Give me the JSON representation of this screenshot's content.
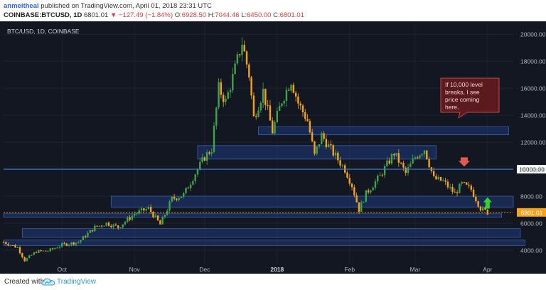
{
  "header": {
    "author": "anmeitheal",
    "published": "published on TradingView.com, April 01, 2018 23:31 UTC",
    "symbol": "COINBASE:BTCUSD, 1D",
    "last": "6801.01",
    "change_arrow": "▼",
    "change": "−127.49 (−1.84%)",
    "o_label": "O:",
    "o_value": "6928.50",
    "h_label": "H:",
    "h_value": "7044.46",
    "l_label": "L:",
    "l_value": "6450.00",
    "c_label": "C:",
    "c_value": "6801.01"
  },
  "footer": {
    "created_with": "Created with",
    "brand": "TradingView"
  },
  "colors": {
    "background": "#131722",
    "up": "#3fa34d",
    "down": "#f7a21b",
    "zone_fill": "#1e3a78",
    "zone_stroke": "#3b5fa8",
    "level_line": "#3d7de0",
    "price_line": "#f7a21b",
    "callout_fill": "#5a1a1e",
    "callout_stroke": "#c8444a",
    "down_marker": "#e05a4f",
    "up_marker": "#34d12f"
  },
  "chart_data": {
    "type": "candlestick",
    "chart_label": "BTC/USD, 1D, COINBASE",
    "x_start": "2017-09-06",
    "x_end": "2018-04-12",
    "ylim": [
      3000,
      20800
    ],
    "y_ticks": [
      "4000.00",
      "6000.00",
      "8000.00",
      "10000.00",
      "12000.00",
      "14000.00",
      "16000.00",
      "18000.00",
      "20000.00"
    ],
    "y_tick_values": [
      4000,
      6000,
      8000,
      10000,
      12000,
      14000,
      16000,
      18000,
      20000
    ],
    "x_ticks": [
      {
        "label": "Oct",
        "date": "2017-10-01",
        "bold": false
      },
      {
        "label": "Nov",
        "date": "2017-11-01",
        "bold": false
      },
      {
        "label": "Dec",
        "date": "2017-12-01",
        "bold": false
      },
      {
        "label": "2018",
        "date": "2018-01-01",
        "bold": true
      },
      {
        "label": "Feb",
        "date": "2018-02-01",
        "bold": false
      },
      {
        "label": "Mar",
        "date": "2018-03-01",
        "bold": false
      },
      {
        "label": "Apr",
        "date": "2018-04-01",
        "bold": false
      }
    ],
    "closes": [
      {
        "date": "2017-09-06",
        "close": 4600
      },
      {
        "date": "2017-09-12",
        "close": 4200
      },
      {
        "date": "2017-09-15",
        "close": 3250
      },
      {
        "date": "2017-09-20",
        "close": 3900
      },
      {
        "date": "2017-09-25",
        "close": 3950
      },
      {
        "date": "2017-10-01",
        "close": 4400
      },
      {
        "date": "2017-10-08",
        "close": 4600
      },
      {
        "date": "2017-10-15",
        "close": 5700
      },
      {
        "date": "2017-10-20",
        "close": 6000
      },
      {
        "date": "2017-10-25",
        "close": 5700
      },
      {
        "date": "2017-11-01",
        "close": 6700
      },
      {
        "date": "2017-11-07",
        "close": 7100
      },
      {
        "date": "2017-11-12",
        "close": 5900
      },
      {
        "date": "2017-11-17",
        "close": 7800
      },
      {
        "date": "2017-11-22",
        "close": 8100
      },
      {
        "date": "2017-11-27",
        "close": 9700
      },
      {
        "date": "2017-12-01",
        "close": 10900
      },
      {
        "date": "2017-12-04",
        "close": 11500
      },
      {
        "date": "2017-12-07",
        "close": 16000
      },
      {
        "date": "2017-12-10",
        "close": 15000
      },
      {
        "date": "2017-12-13",
        "close": 16800
      },
      {
        "date": "2017-12-17",
        "close": 19400
      },
      {
        "date": "2017-12-20",
        "close": 17000
      },
      {
        "date": "2017-12-22",
        "close": 13800
      },
      {
        "date": "2017-12-26",
        "close": 15800
      },
      {
        "date": "2017-12-30",
        "close": 12800
      },
      {
        "date": "2018-01-03",
        "close": 15100
      },
      {
        "date": "2018-01-07",
        "close": 16600
      },
      {
        "date": "2018-01-10",
        "close": 14900
      },
      {
        "date": "2018-01-14",
        "close": 13600
      },
      {
        "date": "2018-01-17",
        "close": 11000
      },
      {
        "date": "2018-01-20",
        "close": 12500
      },
      {
        "date": "2018-01-25",
        "close": 11200
      },
      {
        "date": "2018-01-30",
        "close": 10000
      },
      {
        "date": "2018-02-02",
        "close": 8800
      },
      {
        "date": "2018-02-05",
        "close": 7000
      },
      {
        "date": "2018-02-08",
        "close": 8200
      },
      {
        "date": "2018-02-14",
        "close": 9500
      },
      {
        "date": "2018-02-20",
        "close": 11200
      },
      {
        "date": "2018-02-25",
        "close": 9700
      },
      {
        "date": "2018-03-01",
        "close": 10900
      },
      {
        "date": "2018-03-05",
        "close": 11500
      },
      {
        "date": "2018-03-09",
        "close": 9300
      },
      {
        "date": "2018-03-13",
        "close": 9100
      },
      {
        "date": "2018-03-18",
        "close": 8200
      },
      {
        "date": "2018-03-21",
        "close": 8900
      },
      {
        "date": "2018-03-25",
        "close": 8500
      },
      {
        "date": "2018-03-29",
        "close": 7100
      },
      {
        "date": "2018-04-01",
        "close": 6801
      }
    ],
    "horizontal_lines": [
      {
        "value": 10000,
        "label": "10000.00",
        "style": "solid"
      },
      {
        "value": 6801.01,
        "label": "6801.01",
        "style": "dotted"
      }
    ],
    "zones": [
      {
        "from": "2017-12-24",
        "to": "2018-04-10",
        "low": 12550,
        "high": 13150
      },
      {
        "from": "2017-11-28",
        "to": "2018-03-10",
        "low": 10750,
        "high": 11750
      },
      {
        "from": "2017-10-22",
        "to": "2018-04-12",
        "low": 7200,
        "high": 8000
      },
      {
        "from": "2017-09-06",
        "to": "2018-04-07",
        "low": 6450,
        "high": 6700
      },
      {
        "from": "2017-09-14",
        "to": "2018-04-15",
        "low": 4950,
        "high": 5600
      },
      {
        "from": "2017-09-06",
        "to": "2018-04-17",
        "low": 4350,
        "high": 4750
      }
    ],
    "callout": {
      "text": [
        "If 10,000 level",
        "breaks, I see",
        "price coming",
        "here."
      ]
    },
    "markers": [
      {
        "type": "down-arrow",
        "date": "2018-03-22",
        "value": 10350
      },
      {
        "type": "up-arrow",
        "date": "2018-04-01",
        "value": 7400
      }
    ]
  }
}
